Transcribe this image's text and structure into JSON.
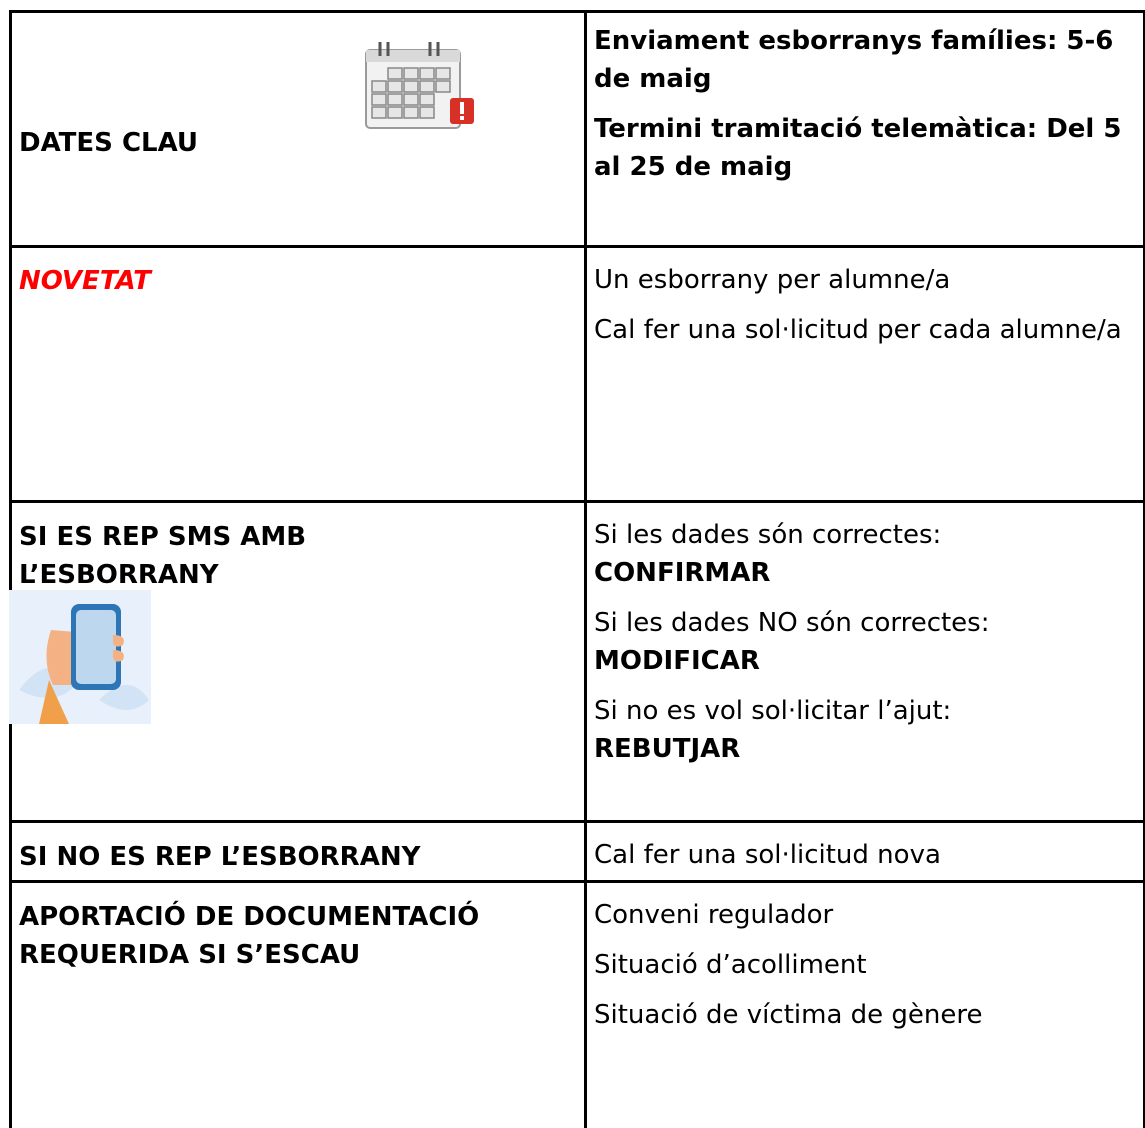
{
  "table": {
    "rows": [
      {
        "label": "DATES CLAU",
        "content": [
          {
            "text": "Enviament esborranys famílies: 5-6 de maig",
            "bold": true
          },
          {
            "text": "Termini tramitació telemàtica: Del 5 al 25 de maig",
            "bold": true
          }
        ]
      },
      {
        "label": "NOVETAT",
        "content": [
          {
            "text": "Un esborrany per alumne/a"
          },
          {
            "text": "Cal fer una sol·licitud per cada alumne/a"
          }
        ]
      },
      {
        "label": "SI ES REP SMS AMB L’ESBORRANY",
        "content": [
          {
            "text": "Si les dades són correctes:",
            "action": "CONFIRMAR"
          },
          {
            "text": "Si les dades NO són correctes:",
            "action": "MODIFICAR"
          },
          {
            "text": "Si no es vol sol·licitar l’ajut:",
            "action": "REBUTJAR"
          }
        ]
      },
      {
        "label": "SI NO ES REP L’ESBORRANY",
        "content": [
          {
            "text": "Cal fer una sol·licitud nova"
          }
        ]
      },
      {
        "label": "APORTACIÓ DE DOCUMENTACIÓ REQUERIDA SI S’ESCAU",
        "content": [
          {
            "text": "Conveni regulador"
          },
          {
            "text": "Situació d’acolliment"
          },
          {
            "text": "Situació de víctima de gènere"
          }
        ]
      }
    ]
  }
}
